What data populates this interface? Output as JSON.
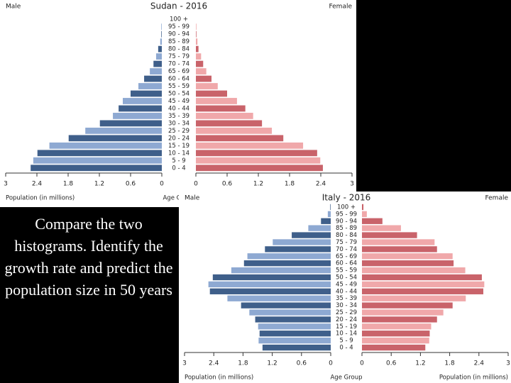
{
  "chart_data": [
    {
      "type": "pyramid",
      "title": "Sudan - 2016",
      "left_label": "Male",
      "right_label": "Female",
      "x_label": "Population (in millions)",
      "y_label": "Age Group",
      "categories": [
        "0 - 4",
        "5 - 9",
        "10 - 14",
        "15 - 19",
        "20 - 24",
        "25 - 29",
        "30 - 34",
        "35 - 39",
        "40 - 44",
        "45 - 49",
        "50 - 54",
        "55 - 59",
        "60 - 64",
        "65 - 69",
        "70 - 74",
        "75 - 79",
        "80 - 84",
        "85 - 89",
        "90 - 94",
        "95 - 99",
        "100 +"
      ],
      "series": [
        {
          "name": "Male",
          "colors": [
            "#3f5f8a",
            "#8ea9d2"
          ],
          "values": [
            2.52,
            2.47,
            2.39,
            2.16,
            1.79,
            1.47,
            1.19,
            0.94,
            0.83,
            0.75,
            0.6,
            0.45,
            0.34,
            0.23,
            0.16,
            0.11,
            0.07,
            0.03,
            0.01,
            0.01,
            0
          ]
        },
        {
          "name": "Female",
          "colors": [
            "#c9636a",
            "#f0a8aa"
          ],
          "values": [
            2.44,
            2.39,
            2.33,
            2.06,
            1.68,
            1.46,
            1.27,
            1.1,
            0.95,
            0.79,
            0.6,
            0.42,
            0.3,
            0.2,
            0.14,
            0.1,
            0.05,
            0.03,
            0.01,
            0.01,
            0
          ]
        }
      ],
      "xlim": [
        0,
        3
      ],
      "xticks": [
        0,
        0.6,
        1.2,
        1.8,
        2.4,
        3
      ]
    },
    {
      "type": "pyramid",
      "title": "Italy - 2016",
      "left_label": "Male",
      "right_label": "Female",
      "x_label": "Population (in millions)",
      "y_label": "Age Group",
      "categories": [
        "0 - 4",
        "5 - 9",
        "10 - 14",
        "15 - 19",
        "20 - 24",
        "25 - 29",
        "30 - 34",
        "35 - 39",
        "40 - 44",
        "45 - 49",
        "50 - 54",
        "55 - 59",
        "60 - 64",
        "65 - 69",
        "70 - 74",
        "75 - 79",
        "80 - 84",
        "85 - 89",
        "90 - 94",
        "95 - 99",
        "100 +"
      ],
      "series": [
        {
          "name": "Male",
          "colors": [
            "#3f5f8a",
            "#8ea9d2"
          ],
          "values": [
            1.4,
            1.48,
            1.46,
            1.49,
            1.55,
            1.67,
            1.84,
            2.12,
            2.48,
            2.51,
            2.42,
            2.04,
            1.78,
            1.71,
            1.35,
            1.19,
            0.8,
            0.46,
            0.2,
            0.06,
            0.01
          ]
        },
        {
          "name": "Female",
          "colors": [
            "#c9636a",
            "#f0a8aa"
          ],
          "values": [
            1.3,
            1.38,
            1.39,
            1.42,
            1.54,
            1.67,
            1.86,
            2.13,
            2.49,
            2.51,
            2.46,
            2.12,
            1.88,
            1.86,
            1.54,
            1.49,
            1.13,
            0.8,
            0.42,
            0.1,
            0.03
          ]
        }
      ],
      "xlim": [
        0,
        3
      ],
      "xticks": [
        0,
        0.6,
        1.2,
        1.8,
        2.4,
        3
      ]
    }
  ],
  "caption": "Compare the two histograms.  Identify the growth rate and predict the population size in 50 years"
}
